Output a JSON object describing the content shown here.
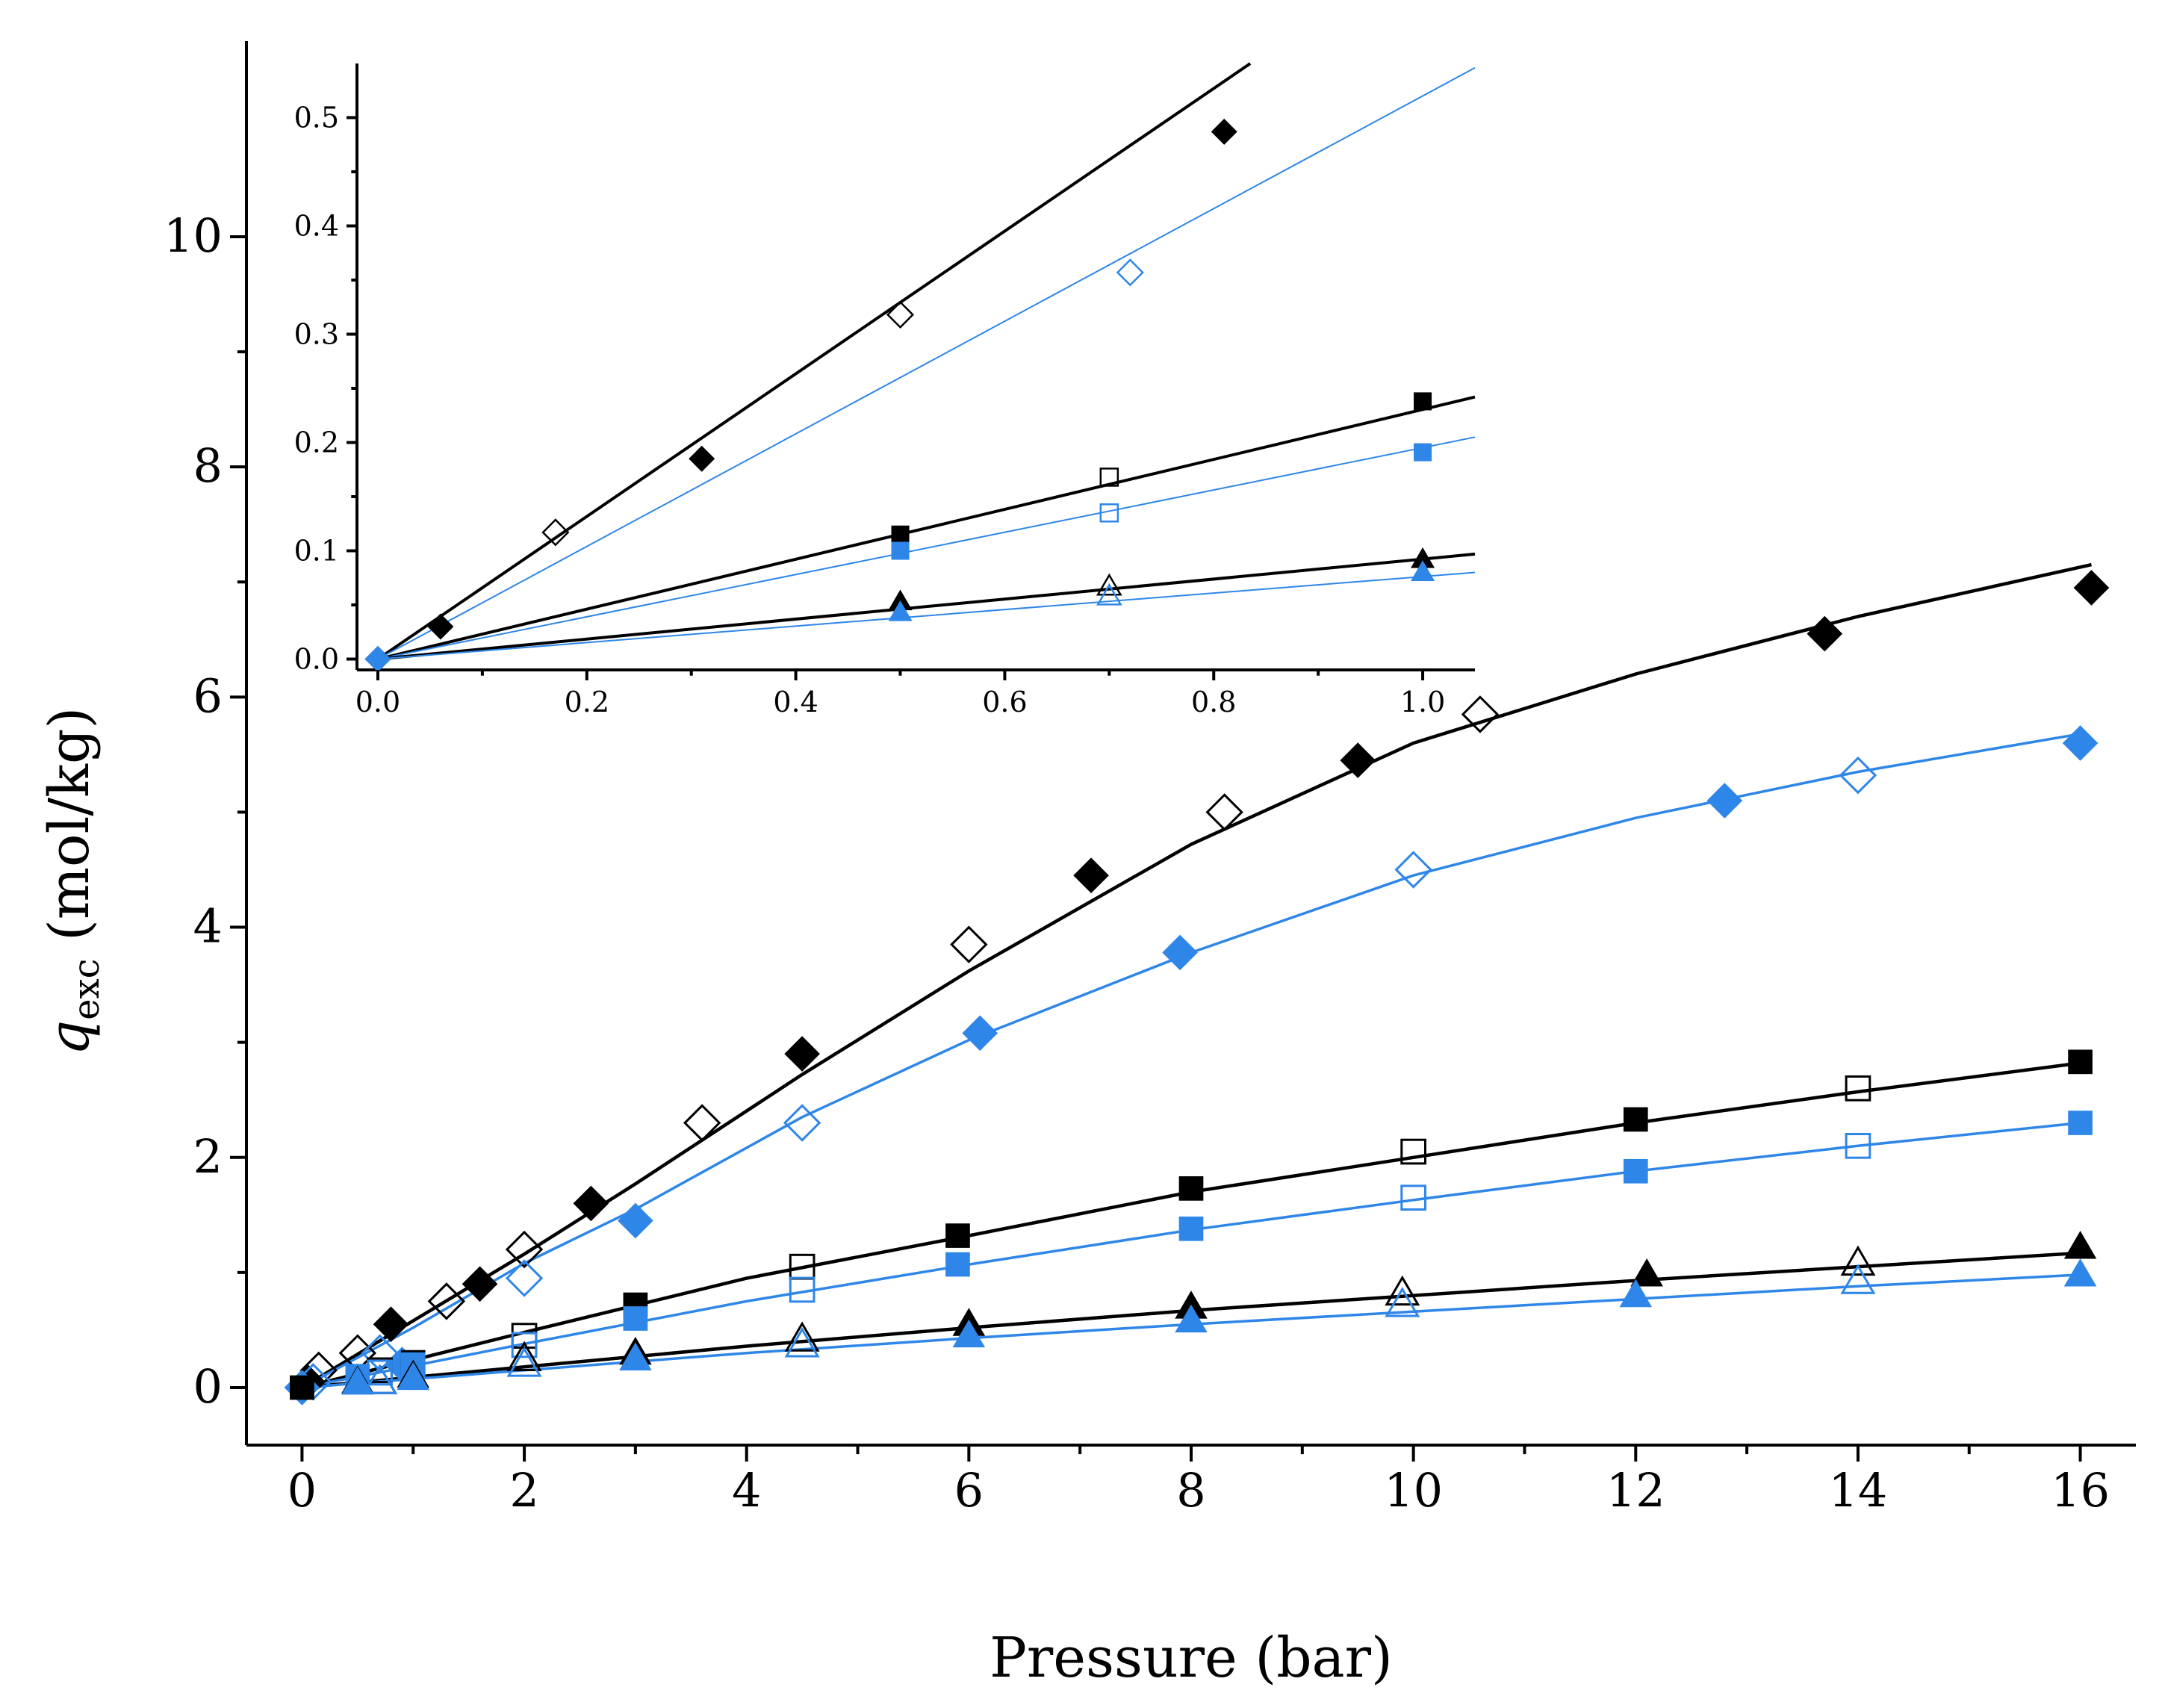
{
  "chart_data": [
    {
      "id": "main",
      "type": "scatter",
      "xlabel": "Pressure (bar)",
      "ylabel": {
        "symbol": "q",
        "subscript": "exc",
        "unit": " (mol/kg)"
      },
      "xlim": [
        -0.5,
        16.5
      ],
      "ylim": [
        -0.5,
        11.7
      ],
      "xticks": [
        0,
        2,
        4,
        6,
        8,
        10,
        12,
        14,
        16
      ],
      "yticks": [
        0,
        2,
        4,
        6,
        8,
        10
      ],
      "series": [
        {
          "name": "diamond-filled-black",
          "marker": "diamond",
          "filled": true,
          "color": "#000000",
          "x": [
            0.05,
            0.8,
            1.6,
            2.6,
            4.5,
            7.1,
            9.5,
            13.7,
            16.1
          ],
          "y": [
            0.05,
            0.55,
            0.9,
            1.6,
            2.9,
            4.45,
            5.45,
            6.55,
            6.95
          ]
        },
        {
          "name": "diamond-open-black",
          "marker": "diamond",
          "filled": false,
          "color": "#000000",
          "x": [
            0.15,
            0.5,
            1.3,
            2.0,
            3.6,
            6.0,
            8.3,
            10.6
          ],
          "y": [
            0.15,
            0.3,
            0.75,
            1.2,
            2.3,
            3.85,
            5.0,
            5.85
          ]
        },
        {
          "name": "diamond-filled-blue",
          "marker": "diamond",
          "filled": true,
          "color": "#2e86e8",
          "x": [
            0.0,
            0.9,
            3.0,
            6.1,
            7.9,
            12.8,
            16.0
          ],
          "y": [
            0.0,
            0.2,
            1.45,
            3.08,
            3.78,
            5.1,
            5.6
          ]
        },
        {
          "name": "diamond-open-blue",
          "marker": "diamond",
          "filled": false,
          "color": "#2e86e8",
          "x": [
            0.1,
            0.7,
            2.0,
            4.5,
            10.0,
            14.0
          ],
          "y": [
            0.05,
            0.3,
            0.95,
            2.3,
            4.5,
            5.32
          ]
        },
        {
          "name": "square-filled-black",
          "marker": "square",
          "filled": true,
          "color": "#000000",
          "x": [
            0.0,
            1.0,
            3.0,
            5.9,
            8.0,
            12.0,
            16.0
          ],
          "y": [
            0.0,
            0.22,
            0.72,
            1.32,
            1.73,
            2.33,
            2.83
          ]
        },
        {
          "name": "square-open-black",
          "marker": "square",
          "filled": false,
          "color": "#000000",
          "x": [
            0.7,
            2.0,
            4.5,
            10.0,
            14.0
          ],
          "y": [
            0.15,
            0.45,
            1.05,
            2.05,
            2.6
          ]
        },
        {
          "name": "square-filled-blue",
          "marker": "square",
          "filled": true,
          "color": "#2e86e8",
          "x": [
            0.5,
            1.0,
            3.0,
            5.9,
            8.0,
            12.0,
            16.0
          ],
          "y": [
            0.1,
            0.2,
            0.6,
            1.07,
            1.38,
            1.88,
            2.3
          ]
        },
        {
          "name": "square-open-blue",
          "marker": "square",
          "filled": false,
          "color": "#2e86e8",
          "x": [
            0.7,
            2.0,
            4.5,
            10.0,
            14.0
          ],
          "y": [
            0.13,
            0.37,
            0.85,
            1.65,
            2.1
          ]
        },
        {
          "name": "triangle-filled-black",
          "marker": "triangle",
          "filled": true,
          "color": "#000000",
          "x": [
            0.5,
            1.0,
            3.0,
            6.0,
            8.0,
            12.1,
            16.0
          ],
          "y": [
            0.05,
            0.1,
            0.3,
            0.55,
            0.7,
            0.98,
            1.22
          ]
        },
        {
          "name": "triangle-open-black",
          "marker": "triangle",
          "filled": false,
          "color": "#000000",
          "x": [
            0.7,
            2.0,
            4.5,
            9.9,
            14.0
          ],
          "y": [
            0.05,
            0.25,
            0.42,
            0.82,
            1.08
          ]
        },
        {
          "name": "triangle-filled-blue",
          "marker": "triangle",
          "filled": true,
          "color": "#2e86e8",
          "x": [
            0.5,
            1.0,
            3.0,
            6.0,
            8.0,
            12.0,
            16.0
          ],
          "y": [
            0.04,
            0.08,
            0.25,
            0.45,
            0.58,
            0.8,
            0.98
          ]
        },
        {
          "name": "triangle-open-blue",
          "marker": "triangle",
          "filled": false,
          "color": "#2e86e8",
          "x": [
            0.7,
            2.0,
            4.5,
            9.9,
            14.0
          ],
          "y": [
            0.05,
            0.2,
            0.37,
            0.72,
            0.92
          ]
        }
      ],
      "fits": [
        {
          "name": "fit-diamond-black",
          "color": "#000000",
          "width": 4.5,
          "x": [
            0,
            1,
            2,
            3,
            4.5,
            6,
            8,
            10,
            12,
            14,
            16.1
          ],
          "y": [
            0,
            0.58,
            1.16,
            1.77,
            2.72,
            3.62,
            4.72,
            5.6,
            6.2,
            6.7,
            7.15
          ]
        },
        {
          "name": "fit-diamond-blue",
          "color": "#2e86e8",
          "width": 3.5,
          "x": [
            0,
            1,
            2,
            3,
            4.5,
            6,
            8,
            10,
            12,
            14,
            16
          ],
          "y": [
            0,
            0.52,
            1.08,
            1.55,
            2.35,
            3.02,
            3.78,
            4.45,
            4.95,
            5.35,
            5.68
          ]
        },
        {
          "name": "fit-square-black",
          "color": "#000000",
          "width": 4.5,
          "x": [
            0,
            2,
            4,
            6,
            8,
            10,
            12,
            14,
            16
          ],
          "y": [
            0,
            0.48,
            0.95,
            1.32,
            1.7,
            2.0,
            2.3,
            2.57,
            2.82
          ]
        },
        {
          "name": "fit-square-blue",
          "color": "#2e86e8",
          "width": 3.5,
          "x": [
            0,
            2,
            4,
            6,
            8,
            10,
            12,
            14,
            16
          ],
          "y": [
            0,
            0.38,
            0.75,
            1.07,
            1.37,
            1.63,
            1.88,
            2.1,
            2.3
          ]
        },
        {
          "name": "fit-triangle-black",
          "color": "#000000",
          "width": 4.5,
          "x": [
            0,
            2,
            4,
            6,
            8,
            10,
            12,
            14,
            16
          ],
          "y": [
            0,
            0.18,
            0.36,
            0.52,
            0.67,
            0.8,
            0.93,
            1.05,
            1.17
          ]
        },
        {
          "name": "fit-triangle-blue",
          "color": "#2e86e8",
          "width": 3.5,
          "x": [
            0,
            2,
            4,
            6,
            8,
            10,
            12,
            14,
            16
          ],
          "y": [
            0,
            0.15,
            0.3,
            0.43,
            0.55,
            0.66,
            0.77,
            0.88,
            0.98
          ]
        }
      ]
    },
    {
      "id": "inset",
      "type": "scatter",
      "xlim": [
        -0.02,
        1.05
      ],
      "ylim": [
        -0.01,
        0.55
      ],
      "xticks": [
        0.0,
        0.2,
        0.4,
        0.6,
        0.8,
        1.0
      ],
      "xtick_labels": [
        "0.0",
        "0.2",
        "0.4",
        "0.6",
        "0.8",
        "1.0"
      ],
      "yticks": [
        0.0,
        0.1,
        0.2,
        0.3,
        0.4,
        0.5
      ],
      "ytick_labels": [
        "0.0",
        "0.1",
        "0.2",
        "0.3",
        "0.4",
        "0.5"
      ],
      "series": [
        {
          "name": "diamond-filled-black",
          "marker": "diamond",
          "filled": true,
          "color": "#000000",
          "x": [
            0.0,
            0.06,
            0.31,
            0.81
          ],
          "y": [
            0.0,
            0.03,
            0.185,
            0.487
          ]
        },
        {
          "name": "diamond-open-black",
          "marker": "diamond",
          "filled": false,
          "color": "#000000",
          "x": [
            0.17,
            0.5
          ],
          "y": [
            0.117,
            0.318
          ]
        },
        {
          "name": "diamond-open-blue",
          "marker": "diamond",
          "filled": false,
          "color": "#2e86e8",
          "x": [
            0.72
          ],
          "y": [
            0.357
          ]
        },
        {
          "name": "diamond-filled-blue",
          "marker": "diamond",
          "filled": true,
          "color": "#2e86e8",
          "x": [
            0.0
          ],
          "y": [
            0.0
          ]
        },
        {
          "name": "square-filled-black",
          "marker": "square",
          "filled": true,
          "color": "#000000",
          "x": [
            0.5,
            1.0
          ],
          "y": [
            0.115,
            0.238
          ]
        },
        {
          "name": "square-open-black",
          "marker": "square",
          "filled": false,
          "color": "#000000",
          "x": [
            0.7
          ],
          "y": [
            0.168
          ]
        },
        {
          "name": "square-filled-blue",
          "marker": "square",
          "filled": true,
          "color": "#2e86e8",
          "x": [
            0.5,
            1.0
          ],
          "y": [
            0.1,
            0.191
          ]
        },
        {
          "name": "square-open-blue",
          "marker": "square",
          "filled": false,
          "color": "#2e86e8",
          "x": [
            0.7
          ],
          "y": [
            0.135
          ]
        },
        {
          "name": "triangle-filled-black",
          "marker": "triangle",
          "filled": true,
          "color": "#000000",
          "x": [
            0.5,
            1.0
          ],
          "y": [
            0.053,
            0.092
          ]
        },
        {
          "name": "triangle-open-black",
          "marker": "triangle",
          "filled": false,
          "color": "#000000",
          "x": [
            0.7
          ],
          "y": [
            0.067
          ]
        },
        {
          "name": "triangle-filled-blue",
          "marker": "triangle",
          "filled": true,
          "color": "#2e86e8",
          "x": [
            0.5,
            1.0
          ],
          "y": [
            0.043,
            0.08
          ]
        },
        {
          "name": "triangle-open-blue",
          "marker": "triangle",
          "filled": false,
          "color": "#2e86e8",
          "x": [
            0.7
          ],
          "y": [
            0.058
          ]
        }
      ],
      "fits": [
        {
          "name": "fit-diamond-black",
          "color": "#000000",
          "width": 4,
          "x": [
            0,
            0.835
          ],
          "y": [
            0,
            0.55
          ]
        },
        {
          "name": "fit-diamond-blue",
          "color": "#2e86e8",
          "width": 2,
          "x": [
            0,
            1.05
          ],
          "y": [
            0,
            0.546
          ]
        },
        {
          "name": "fit-square-black",
          "color": "#000000",
          "width": 4,
          "x": [
            0,
            1.05
          ],
          "y": [
            0,
            0.242
          ]
        },
        {
          "name": "fit-square-blue",
          "color": "#2e86e8",
          "width": 2,
          "x": [
            0,
            1.05
          ],
          "y": [
            0,
            0.205
          ]
        },
        {
          "name": "fit-triangle-black",
          "color": "#000000",
          "width": 4,
          "x": [
            0,
            1.05
          ],
          "y": [
            0,
            0.097
          ]
        },
        {
          "name": "fit-triangle-blue",
          "color": "#2e86e8",
          "width": 2,
          "x": [
            0,
            1.05
          ],
          "y": [
            0,
            0.08
          ]
        }
      ]
    }
  ]
}
